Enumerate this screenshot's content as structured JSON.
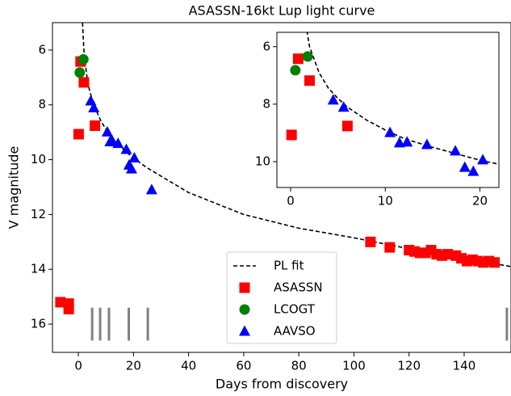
{
  "chart_data": [
    {
      "type": "scatter",
      "title": "ASASSN-16kt Lup light curve",
      "xlabel": "Days from discovery",
      "ylabel": "V magnitude",
      "xlim": [
        -9.4,
        157
      ],
      "ylim": [
        17.03,
        5.0
      ],
      "xticks": [
        0,
        20,
        40,
        60,
        80,
        100,
        120,
        140
      ],
      "yticks": [
        6,
        8,
        10,
        12,
        14,
        16
      ],
      "legend": "lower center",
      "series": [
        {
          "name": "PL fit",
          "color": "#000000",
          "marker": "line",
          "x": [
            1.5,
            2,
            3,
            4,
            5,
            6,
            8,
            10,
            12,
            15,
            20,
            25,
            30,
            40,
            50,
            60,
            80,
            100,
            120,
            140,
            157
          ],
          "values": [
            5.0,
            6.0,
            6.9,
            7.45,
            7.8,
            8.1,
            8.55,
            8.9,
            9.2,
            9.5,
            9.95,
            10.3,
            10.6,
            11.2,
            11.6,
            12.0,
            12.5,
            12.85,
            13.25,
            13.6,
            13.9
          ]
        },
        {
          "name": "ASASSN",
          "color": "#ff0000",
          "marker": "square",
          "x": [
            -6.5,
            -3.5,
            -3.5,
            0.1,
            0.8,
            2.0,
            6.0,
            106,
            113,
            120,
            122,
            124,
            126,
            128,
            130,
            132,
            134,
            137,
            139,
            141,
            143,
            145,
            147,
            149,
            151
          ],
          "values": [
            15.2,
            15.25,
            15.45,
            9.07,
            6.42,
            7.18,
            8.76,
            13.0,
            13.2,
            13.3,
            13.35,
            13.4,
            13.4,
            13.3,
            13.45,
            13.5,
            13.45,
            13.5,
            13.6,
            13.7,
            13.65,
            13.7,
            13.75,
            13.7,
            13.75
          ]
        },
        {
          "name": "LCOGT",
          "color": "#008000",
          "marker": "circle",
          "x": [
            0.5,
            1.8
          ],
          "values": [
            6.82,
            6.34
          ]
        },
        {
          "name": "AAVSO",
          "color": "#0000ff",
          "marker": "triangle",
          "x": [
            4.5,
            5.6,
            10.5,
            11.5,
            12.3,
            14.4,
            17.4,
            18.4,
            19.3,
            20.3,
            26.6
          ],
          "values": [
            7.86,
            8.11,
            8.99,
            9.35,
            9.32,
            9.41,
            9.63,
            10.2,
            10.34,
            9.94,
            11.1
          ]
        }
      ],
      "vlines": {
        "x": [
          5,
          7.9,
          11.1,
          18.3,
          25.2,
          155.5
        ],
        "ymin": 15.4,
        "ymax": 16.6,
        "color": "#808080"
      }
    },
    {
      "type": "scatter",
      "xlim": [
        -1.45,
        22
      ],
      "ylim": [
        10.9,
        5.5
      ],
      "xticks": [
        0,
        10,
        20
      ],
      "yticks": [
        6,
        8,
        10
      ],
      "series": [
        {
          "color": "#000000",
          "marker": "line",
          "x": [
            1.5,
            2,
            3,
            4,
            5,
            6,
            8,
            10,
            12,
            15,
            20,
            25
          ],
          "values": [
            5.0,
            6.0,
            6.9,
            7.45,
            7.8,
            8.1,
            8.55,
            8.9,
            9.2,
            9.5,
            9.95,
            10.3
          ]
        },
        {
          "color": "#ff0000",
          "marker": "square",
          "x": [
            0.1,
            0.8,
            2.0,
            6.0
          ],
          "values": [
            9.07,
            6.42,
            7.18,
            8.76
          ]
        },
        {
          "color": "#008000",
          "marker": "circle",
          "x": [
            0.5,
            1.8
          ],
          "values": [
            6.82,
            6.34
          ]
        },
        {
          "color": "#0000ff",
          "marker": "triangle",
          "x": [
            4.5,
            5.6,
            10.5,
            11.5,
            12.3,
            14.4,
            17.4,
            18.4,
            19.3,
            20.3
          ],
          "values": [
            7.86,
            8.11,
            8.99,
            9.35,
            9.32,
            9.41,
            9.63,
            10.2,
            10.34,
            9.94
          ]
        }
      ]
    }
  ]
}
